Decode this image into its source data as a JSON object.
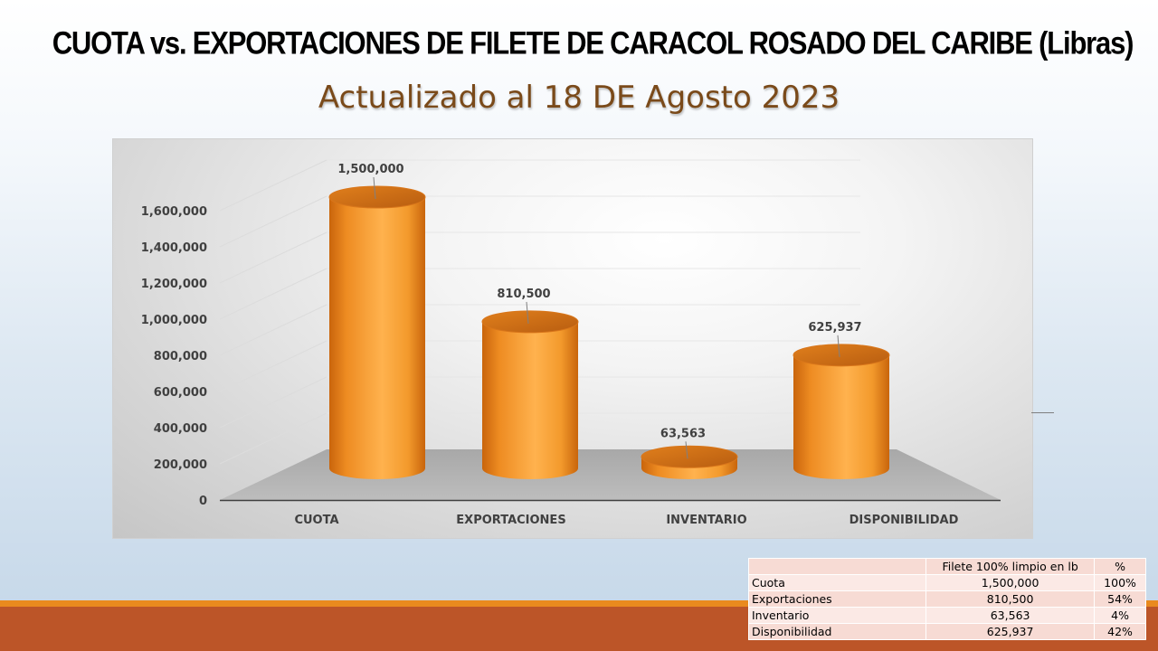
{
  "slide": {
    "title": "CUOTA vs. EXPORTACIONES DE FILETE DE CARACOL  ROSADO DEL CARIBE (Libras)",
    "subtitle": "Actualizado al 18 DE Agosto 2023"
  },
  "chart_data": {
    "type": "bar",
    "categories": [
      "CUOTA",
      "EXPORTACIONES",
      "INVENTARIO",
      "DISPONIBILIDAD"
    ],
    "values": [
      1500000,
      810500,
      63563,
      625937
    ],
    "data_labels": [
      "1,500,000",
      "810,500",
      "63,563",
      "625,937"
    ],
    "ylim": [
      0,
      1600000
    ],
    "yticks": [
      "0",
      "200,000",
      "400,000",
      "600,000",
      "800,000",
      "1,000,000",
      "1,200,000",
      "1,400,000",
      "1,600,000"
    ],
    "grid": true,
    "style": "3d-cylinder",
    "bar_color": "#f39a2c"
  },
  "table": {
    "header": [
      "",
      "Filete 100% limpio en lb",
      "%"
    ],
    "rows": [
      [
        "Cuota",
        "1,500,000",
        "100%"
      ],
      [
        "Exportaciones",
        "810,500",
        "54%"
      ],
      [
        "Inventario",
        "63,563",
        "4%"
      ],
      [
        "Disponibilidad",
        "625,937",
        "42%"
      ]
    ]
  }
}
